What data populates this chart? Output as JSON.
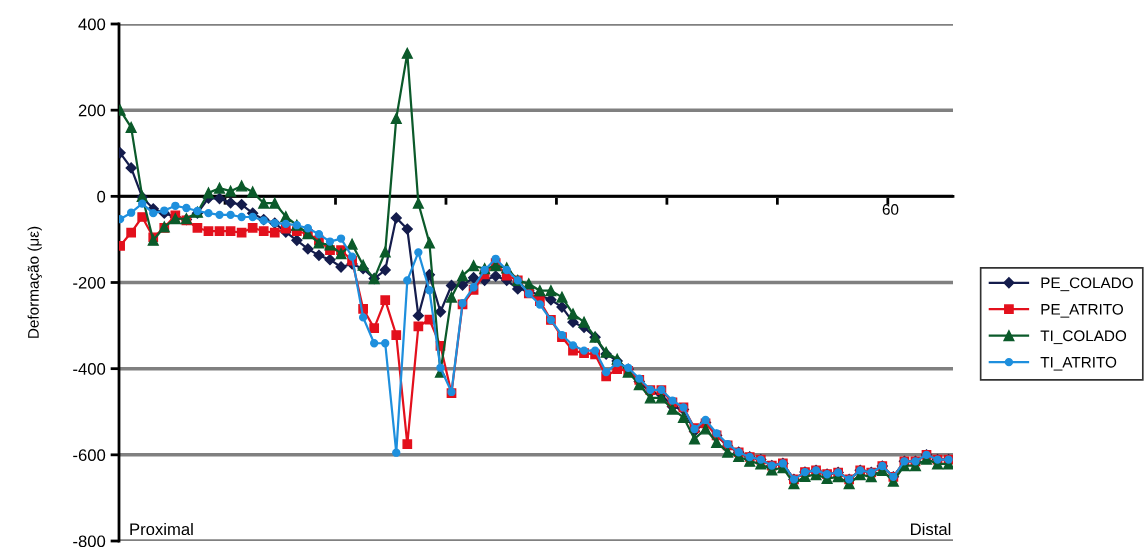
{
  "chart_data": {
    "type": "line",
    "ylabel": "Deformação (με)",
    "categories": [
      null,
      null,
      null,
      null,
      null,
      null,
      null,
      null,
      null,
      null,
      null,
      null,
      null,
      null,
      null,
      null,
      null,
      null,
      null,
      null,
      null,
      null,
      null,
      null,
      null,
      null,
      null,
      null,
      null,
      null,
      null,
      null,
      null,
      null,
      null,
      null,
      null,
      null,
      null,
      null,
      null,
      null,
      null,
      null,
      null,
      null,
      null,
      null,
      null,
      null,
      null,
      null,
      null,
      null,
      null,
      null,
      null,
      null,
      null,
      null,
      null,
      null,
      null,
      null,
      null,
      null,
      null,
      null,
      null,
      null,
      null,
      null,
      null,
      null,
      null,
      null
    ],
    "ylim": [
      -800,
      400
    ],
    "yticks": [
      -800,
      -600,
      -400,
      -200,
      0,
      200,
      400
    ],
    "grid": "y",
    "legend": "right",
    "annotations": [
      "Proximal",
      "Distal",
      "60"
    ],
    "series": [
      {
        "name": "PE_COLADO",
        "color": "#141c4c",
        "marker": "diamond",
        "values": [
          101,
          66,
          -2,
          -29,
          -39,
          -48,
          -54,
          -39,
          -4,
          -5,
          -15,
          -19,
          -39,
          -54,
          -62,
          -83,
          -102,
          -122,
          -137,
          -147,
          -164,
          -157,
          -168,
          -191,
          -171,
          -50,
          -76,
          -277,
          -182,
          -268,
          -207,
          -206,
          -189,
          -195,
          -185,
          -195,
          -215,
          -219,
          -230,
          -240,
          -257,
          -292,
          -304,
          -327,
          -366,
          -382,
          -401,
          -430,
          -455,
          -460,
          -488,
          -495,
          -545,
          -525,
          -555,
          -580,
          -594,
          -605,
          -611,
          -625,
          -620,
          -657,
          -640,
          -636,
          -645,
          -641,
          -657,
          -636,
          -641,
          -626,
          -651,
          -615,
          -615,
          -600,
          -611,
          -611
        ]
      },
      {
        "name": "PE_ATRITO",
        "color": "#e3101c",
        "marker": "square",
        "values": [
          -115,
          -84,
          -48,
          -95,
          -73,
          -44,
          -56,
          -73,
          -81,
          -81,
          -81,
          -84,
          -73,
          -81,
          -84,
          -75,
          -81,
          -87,
          -102,
          -125,
          -125,
          -149,
          -261,
          -306,
          -241,
          -322,
          -575,
          -302,
          -286,
          -347,
          -457,
          -251,
          -217,
          -181,
          -155,
          -184,
          -195,
          -225,
          -243,
          -287,
          -327,
          -358,
          -364,
          -367,
          -418,
          -401,
          -405,
          -426,
          -450,
          -450,
          -478,
          -490,
          -538,
          -527,
          -555,
          -578,
          -594,
          -605,
          -611,
          -625,
          -620,
          -657,
          -640,
          -636,
          -645,
          -641,
          -657,
          -636,
          -641,
          -626,
          -651,
          -615,
          -615,
          -600,
          -611,
          -611
        ]
      },
      {
        "name": "TI_COLADO",
        "color": "#0b5a2a",
        "marker": "triangle",
        "values": [
          200,
          160,
          0,
          -102,
          -71,
          -52,
          -52,
          -37,
          8,
          19,
          12,
          24,
          10,
          -16,
          -16,
          -47,
          -67,
          -87,
          -108,
          -113,
          -133,
          -111,
          -160,
          -191,
          -129,
          181,
          332,
          -16,
          -108,
          -408,
          -234,
          -184,
          -161,
          -168,
          -161,
          -166,
          -195,
          -203,
          -219,
          -219,
          -234,
          -273,
          -292,
          -327,
          -362,
          -378,
          -408,
          -437,
          -468,
          -468,
          -494,
          -513,
          -563,
          -540,
          -571,
          -594,
          -604,
          -615,
          -621,
          -635,
          -630,
          -667,
          -650,
          -646,
          -655,
          -651,
          -667,
          -646,
          -651,
          -636,
          -661,
          -625,
          -625,
          -610,
          -621,
          -621
        ]
      },
      {
        "name": "TI_ATRITO",
        "color": "#1e8fdd",
        "marker": "circle",
        "values": [
          -53,
          -38,
          -17,
          -39,
          -33,
          -22,
          -27,
          -34,
          -39,
          -43,
          -43,
          -48,
          -48,
          -56,
          -62,
          -64,
          -67,
          -74,
          -88,
          -105,
          -98,
          -140,
          -281,
          -341,
          -341,
          -595,
          -195,
          -130,
          -218,
          -398,
          -454,
          -248,
          -211,
          -171,
          -145,
          -171,
          -195,
          -226,
          -251,
          -287,
          -322,
          -346,
          -358,
          -358,
          -408,
          -387,
          -398,
          -423,
          -449,
          -449,
          -474,
          -490,
          -540,
          -519,
          -550,
          -575,
          -594,
          -605,
          -611,
          -625,
          -620,
          -657,
          -640,
          -636,
          -645,
          -641,
          -657,
          -636,
          -641,
          -626,
          -651,
          -615,
          -615,
          -600,
          -611,
          -611
        ]
      }
    ]
  }
}
